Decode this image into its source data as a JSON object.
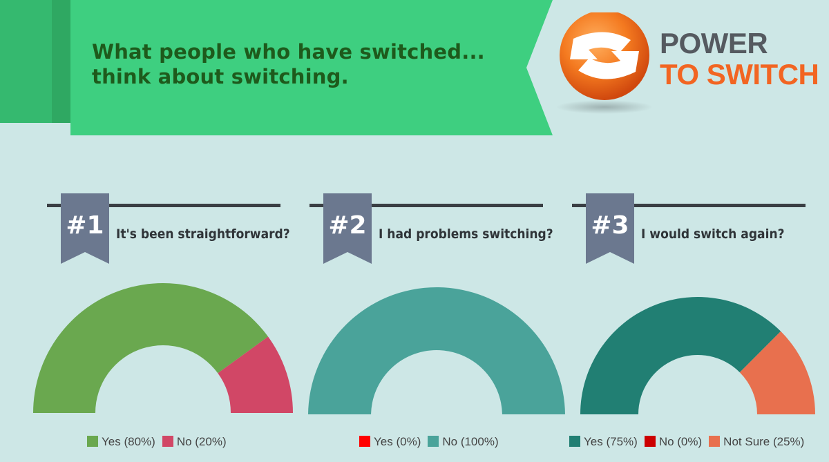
{
  "header": {
    "title_line1": "What people who have switched...",
    "title_line2": "think about switching."
  },
  "logo": {
    "line1": "POWER",
    "line2": "TO SWITCH"
  },
  "colors": {
    "background": "#cde7e6",
    "banner": "#3ecf80",
    "banner_shadow": "#2fa862",
    "title": "#1e5a1c",
    "ribbon": "#6b788f",
    "logo_orange": "#f26522",
    "logo_gray": "#555a60"
  },
  "charts": [
    {
      "number": "#1",
      "question": "It's been straightforward?"
    },
    {
      "number": "#2",
      "question": "I had problems switching?"
    },
    {
      "number": "#3",
      "question": "I would switch again?"
    }
  ],
  "chart_data": [
    {
      "type": "pie",
      "title": "It's been straightforward?",
      "categories": [
        "Yes",
        "No"
      ],
      "values": [
        80,
        20
      ],
      "labels": [
        "Yes (80%)",
        "No (20%)"
      ],
      "colors": [
        "#6aa84f",
        "#d14766"
      ],
      "legend": "bottom"
    },
    {
      "type": "pie",
      "title": "I had problems switching?",
      "categories": [
        "Yes",
        "No"
      ],
      "values": [
        0,
        100
      ],
      "labels": [
        "Yes (0%)",
        "No (100%)"
      ],
      "colors": [
        "#ff0000",
        "#4aa39a"
      ],
      "legend": "bottom"
    },
    {
      "type": "pie",
      "title": "I would switch again?",
      "categories": [
        "Yes",
        "No",
        "Not Sure"
      ],
      "values": [
        75,
        0,
        25
      ],
      "labels": [
        "Yes (75%)",
        "No (0%)",
        "Not Sure (25%)"
      ],
      "colors": [
        "#217f73",
        "#cc0000",
        "#e8704e"
      ],
      "legend": "bottom"
    }
  ]
}
